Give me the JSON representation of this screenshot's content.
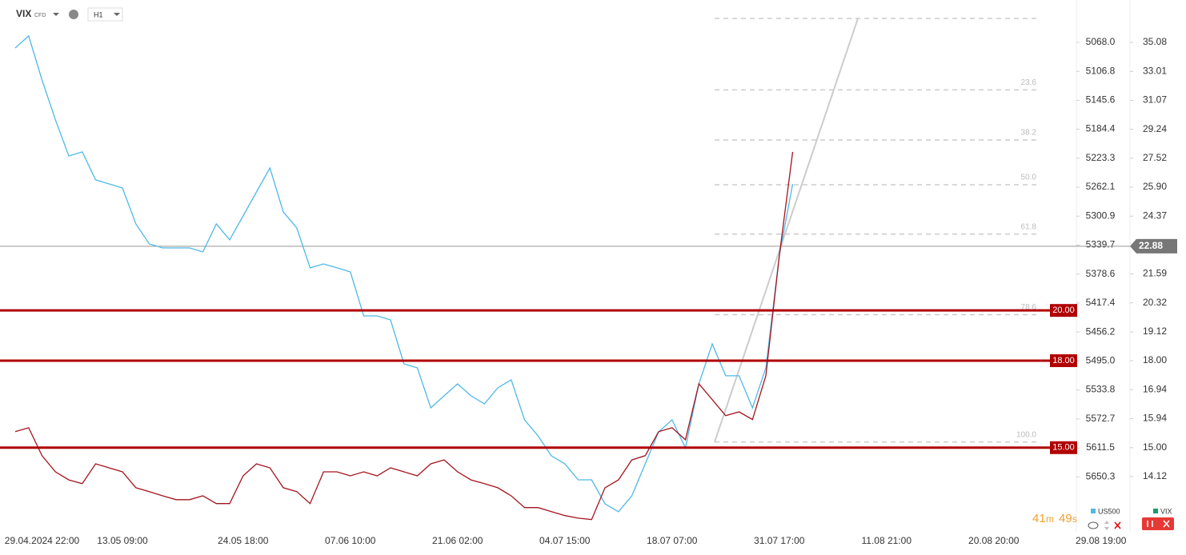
{
  "header": {
    "symbol": "VIX",
    "symbol_type": "CFD",
    "timeframe": "H1"
  },
  "countdown": {
    "minutes": 41,
    "minutes_unit": "m",
    "seconds": 49,
    "seconds_unit": "s"
  },
  "chart_data": {
    "type": "line",
    "categories": [
      null,
      null,
      "29.04.2024 22:00",
      null,
      null,
      null,
      null,
      null,
      "13.05 09:00",
      null,
      null,
      null,
      null,
      null,
      null,
      null,
      null,
      "24.05 18:00",
      null,
      null,
      null,
      null,
      null,
      null,
      null,
      "07.06 10:00",
      null,
      null,
      null,
      null,
      null,
      null,
      null,
      "21.06 02:00",
      null,
      null,
      null,
      null,
      null,
      null,
      null,
      "04.07 15:00",
      null,
      null,
      null,
      null,
      null,
      null,
      null,
      "18.07 07:00",
      null,
      null,
      null,
      null,
      null,
      null,
      null,
      "31.07 17:00",
      null,
      null,
      null,
      null,
      null,
      null,
      null,
      "11.08 21:00",
      null,
      null,
      null,
      null,
      null,
      null,
      null,
      "20.08 20:00",
      null,
      null,
      null,
      null,
      null,
      null,
      null,
      "29.08 19:00"
    ],
    "series": [
      {
        "name": "US500",
        "color": "#4fb8e8",
        "axis": "y",
        "values": [
          5075.5,
          5059.4,
          5118.4,
          5172.0,
          5220.2,
          5214.8,
          5252.3,
          5257.7,
          5263.1,
          5311.3,
          5338.1,
          5343.5,
          5343.5,
          5343.5,
          5348.8,
          5311.3,
          5332.7,
          5300.6,
          5268.4,
          5236.3,
          5295.2,
          5316.7,
          5370.2,
          5364.9,
          5370.2,
          5375.6,
          5434.6,
          5434.6,
          5439.9,
          5498.9,
          5504.2,
          5557.8,
          5541.7,
          5525.7,
          5541.7,
          5552.5,
          5531.0,
          5520.3,
          5573.9,
          5595.3,
          5622.1,
          5632.8,
          5654.3,
          5654.3,
          5686.4,
          5697.1,
          5675.7,
          5632.8,
          5590.0,
          5573.9,
          5611.4,
          5525.7,
          5472.1,
          5514.9,
          5514.9,
          5557.8,
          5504.2,
          5354.2,
          5257.7,
          null,
          null,
          null,
          null,
          null,
          null,
          null,
          null,
          null,
          null,
          null,
          null,
          null,
          null,
          null,
          null,
          null,
          null,
          null,
          null,
          null,
          null,
          null
        ]
      },
      {
        "name": "VIX",
        "color": "#a3151f",
        "axis": "y2",
        "values": [
          15.51,
          15.64,
          14.75,
          14.26,
          14.02,
          13.91,
          14.5,
          14.38,
          14.26,
          13.79,
          13.68,
          13.56,
          13.45,
          13.45,
          13.56,
          13.34,
          13.34,
          14.14,
          14.5,
          14.38,
          13.79,
          13.68,
          13.34,
          14.26,
          14.26,
          14.14,
          14.26,
          14.14,
          14.38,
          14.26,
          14.14,
          14.5,
          14.62,
          14.26,
          14.02,
          13.91,
          13.79,
          13.56,
          13.23,
          13.23,
          13.12,
          13.01,
          12.94,
          12.9,
          13.79,
          14.02,
          14.62,
          14.75,
          15.51,
          15.64,
          15.25,
          17.15,
          16.59,
          16.04,
          16.17,
          15.91,
          17.44,
          22.42,
          27.88,
          null,
          null,
          null,
          null,
          null,
          null,
          null,
          null,
          null,
          null,
          null,
          null,
          null,
          null,
          null,
          null,
          null,
          null,
          null,
          null,
          null,
          null,
          null
        ]
      }
    ],
    "ylim": [
      5019.8,
      5718.6
    ],
    "yticks": [
      {
        "value": 5068,
        "label": "5068.0"
      },
      {
        "value": 5106.8,
        "label": "5106.8"
      },
      {
        "value": 5145.6,
        "label": "5145.6"
      },
      {
        "value": 5184.4,
        "label": "5184.4"
      },
      {
        "value": 5223.3,
        "label": "5223.3"
      },
      {
        "value": 5262.1,
        "label": "5262.1"
      },
      {
        "value": 5300.9,
        "label": "5300.9"
      },
      {
        "value": 5339.7,
        "label": "5339.7"
      },
      {
        "value": 5378.6,
        "label": "5378.6"
      },
      {
        "value": 5417.4,
        "label": "5417.4"
      },
      {
        "value": 5456.2,
        "label": "5456.2"
      },
      {
        "value": 5495,
        "label": "5495.0"
      },
      {
        "value": 5533.8,
        "label": "5533.8"
      },
      {
        "value": 5572.7,
        "label": "5572.7"
      },
      {
        "value": 5611.5,
        "label": "5611.5"
      },
      {
        "value": 5650.3,
        "label": "5650.3"
      }
    ],
    "y2lim": [
      12.68,
      37.83
    ],
    "y2_log": true,
    "y2ticks": [
      35.08,
      33.01,
      31.07,
      29.24,
      27.52,
      {
        "value": 25.9,
        "label": "25.90"
      },
      24.37,
      21.59,
      20.32,
      19.12,
      {
        "value": 18,
        "label": "18.00"
      },
      16.94,
      15.94,
      {
        "value": 15,
        "label": "15.00"
      },
      14.12
    ],
    "current_price": 22.88,
    "levels": [
      {
        "value": 20,
        "label": "20.00"
      },
      {
        "value": 18,
        "label": "18.00"
      },
      {
        "value": 15,
        "label": "15.00"
      }
    ],
    "level_color": "#b00000",
    "fibonacci": {
      "high": 36.88,
      "low": 15.18,
      "levels": [
        23.6,
        38.2,
        {
          "value": 50,
          "label": "50.0"
        },
        61.8,
        78.6,
        {
          "value": 100,
          "label": "100.0"
        }
      ]
    }
  }
}
